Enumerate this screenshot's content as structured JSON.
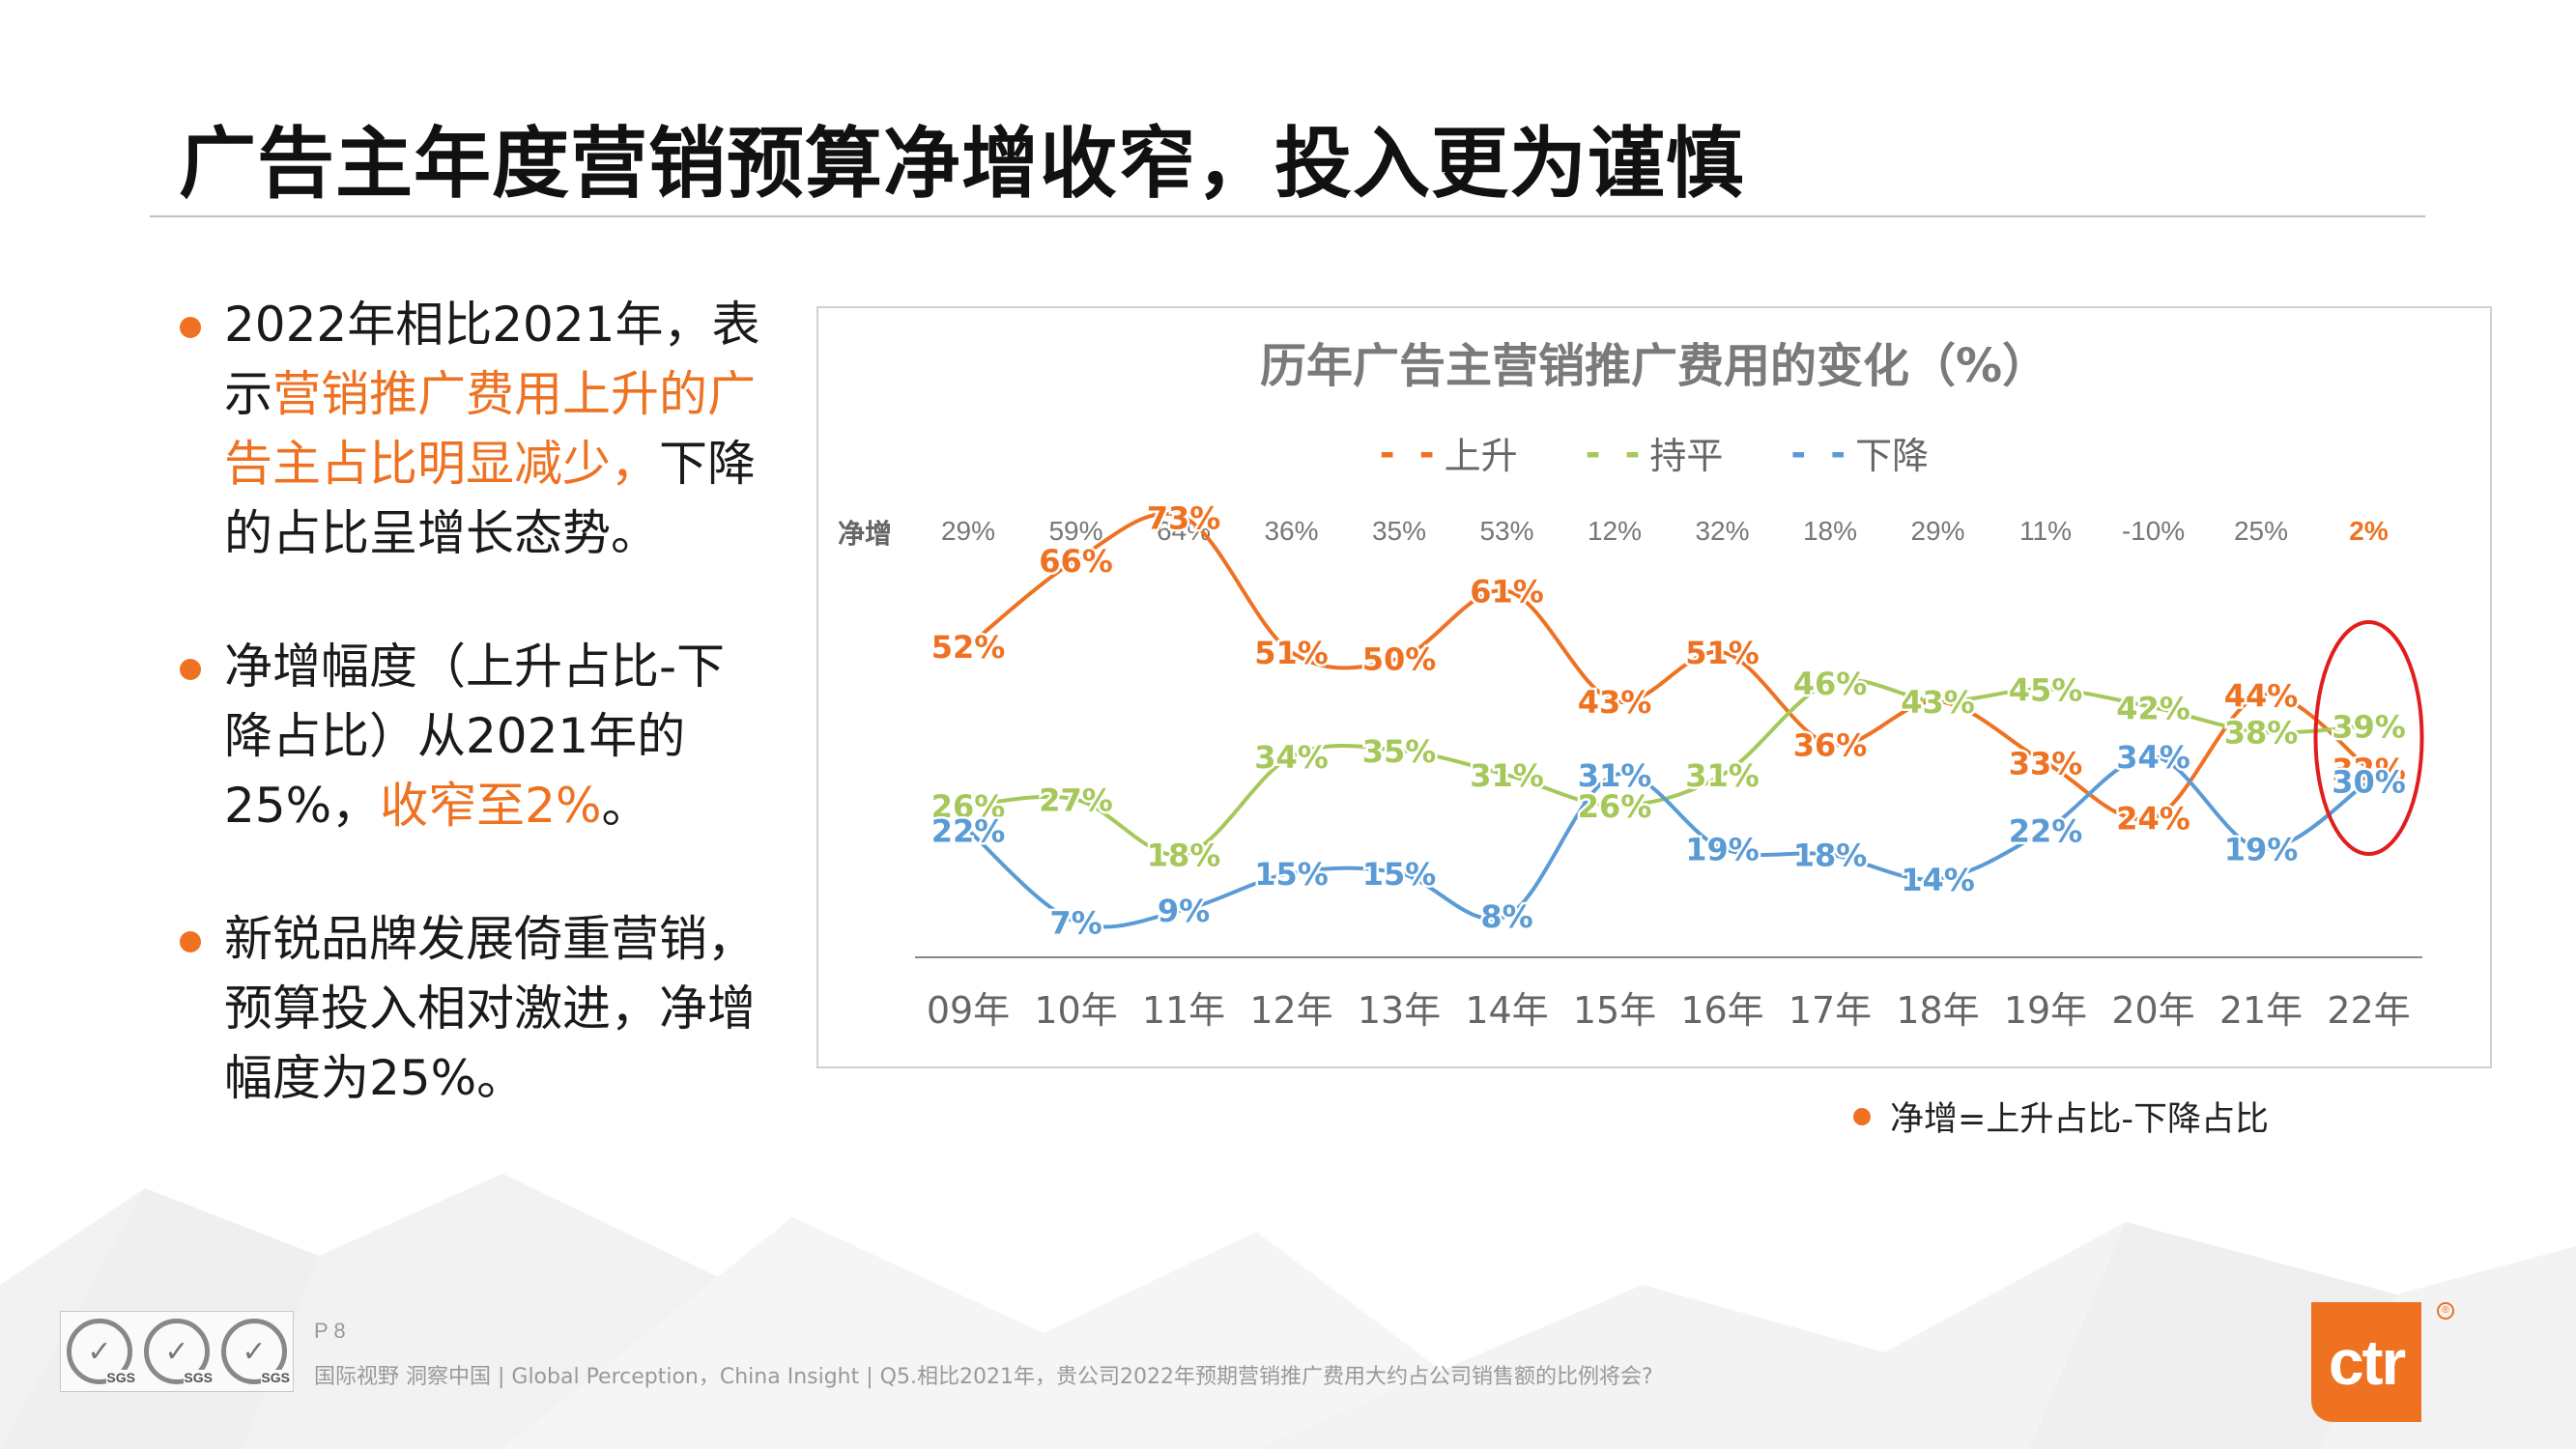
{
  "page": {
    "title": "广告主年度营销预算净增收窄，投入更为谨慎",
    "footnote": "净增=上升占比-下降占比",
    "page_number": "P 8",
    "source": "国际视野  洞察中国 |  Global Perception，China Insight | Q5.相比2021年，贵公司2022年预期营销推广费用大约占公司销售额的比例将会?",
    "logo_text": "ctr",
    "logo_reg": "®",
    "cert_label": "SGS"
  },
  "bullets": [
    {
      "segments": [
        {
          "text": "2022年相比2021年，表示",
          "highlight": false
        },
        {
          "text": "营销推广费用上升的广告主占比明显减少，",
          "highlight": true
        },
        {
          "text": "下降的占比呈增长态势。",
          "highlight": false
        }
      ]
    },
    {
      "segments": [
        {
          "text": "净增幅度（上升占比-下降占比）从2021年的25%，",
          "highlight": false
        },
        {
          "text": "收窄至2%",
          "highlight": true
        },
        {
          "text": "。",
          "highlight": false
        }
      ]
    },
    {
      "segments": [
        {
          "text": "新锐品牌发展倚重营销，预算投入相对激进，净增幅度为25%。",
          "highlight": false
        }
      ]
    }
  ],
  "colors": {
    "accent": "#ee7222",
    "up": "#ee7222",
    "flat": "#a6c85a",
    "down": "#5b9bd5",
    "axis_label": "#666666",
    "circle": "#e01e1e"
  },
  "chart_data": {
    "type": "line",
    "title": "历年广告主营销推广费用的变化（%）",
    "categories": [
      "09年",
      "10年",
      "11年",
      "12年",
      "13年",
      "14年",
      "15年",
      "16年",
      "17年",
      "18年",
      "19年",
      "20年",
      "21年",
      "22年"
    ],
    "series": [
      {
        "name": "上升",
        "key": "up",
        "values": [
          52,
          66,
          73,
          51,
          50,
          61,
          43,
          51,
          36,
          43,
          33,
          24,
          44,
          32
        ]
      },
      {
        "name": "持平",
        "key": "flat",
        "values": [
          26,
          27,
          18,
          34,
          35,
          31,
          26,
          31,
          46,
          43,
          45,
          42,
          38,
          39
        ]
      },
      {
        "name": "下降",
        "key": "down",
        "values": [
          22,
          7,
          9,
          15,
          15,
          8,
          31,
          19,
          18,
          14,
          22,
          34,
          19,
          30
        ]
      }
    ],
    "net_label": "净增",
    "net_values": [
      "29%",
      "59%",
      "64%",
      "36%",
      "35%",
      "53%",
      "12%",
      "32%",
      "18%",
      "29%",
      "11%",
      "-10%",
      "25%",
      "2%"
    ],
    "value_suffix": "%",
    "highlight_last": true,
    "ylim": [
      0,
      80
    ],
    "grid": false,
    "legend_position": "top"
  }
}
